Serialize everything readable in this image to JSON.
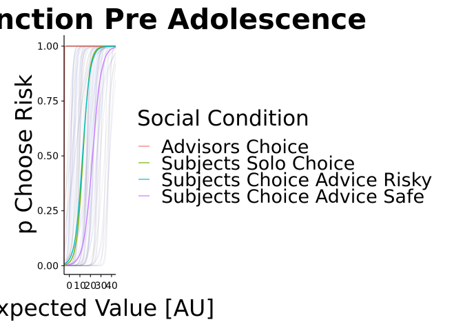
{
  "chart_data": {
    "type": "line",
    "title": "nction Pre Adolescence",
    "xlabel": "xpected Value [AU]",
    "ylabel": "p Choose Risk",
    "xlim": [
      -5,
      44
    ],
    "ylim": [
      -0.04,
      1.05
    ],
    "x_ticks": [
      0,
      10,
      20,
      30,
      40
    ],
    "x_tick_labels": [
      "0",
      "10",
      "20",
      "30",
      "40"
    ],
    "y_ticks": [
      0,
      0.25,
      0.5,
      0.75,
      1
    ],
    "y_tick_labels": [
      "0.00",
      "0.25",
      "0.50",
      "0.75",
      "1.00"
    ],
    "grid": false,
    "legend": {
      "title": "Social Condition",
      "placement": "right",
      "entries": [
        "Advisors Choice",
        "Subjects Solo Choice",
        "Subjects Choice Advice Risky",
        "Subjects Choice Advice Safe"
      ]
    },
    "series": [
      {
        "name": "Advisors Choice",
        "color": "#F8766D",
        "x0": -4.8,
        "slope": 25
      },
      {
        "name": "Subjects Solo Choice",
        "color": "#7CAE00",
        "x0": 13,
        "slope": 0.32
      },
      {
        "name": "Subjects Choice Advice Risky",
        "color": "#00BFC4",
        "x0": 12.5,
        "slope": 0.28
      },
      {
        "name": "Subjects Choice Advice Safe",
        "color": "#C77CFF",
        "x0": 22,
        "slope": 0.24
      }
    ]
  }
}
